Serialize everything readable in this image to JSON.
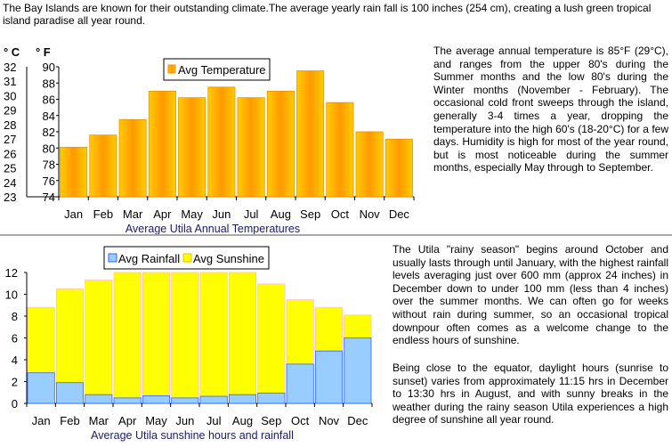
{
  "intro": "The Bay Islands are known for their outstanding climate.The average yearly rain fall is 100 inches (254 cm), creating a lush green tropical island paradise all year round.",
  "paragraphs": {
    "temperature": "The average annual temperature is 85°F (29°C), and ranges from the upper 80's during the Summer months and the low 80's during the Winter months (November - February). The occasional cold front sweeps through the island, generally 3-4 times a year, dropping the temperature into the high 60's (18-20°C) for a few days. Humidity is high for most of the year round, but is most noticeable during the summer months, especially May through to September.",
    "rainy_season": "The Utila \"rainy season\" begins around October and usually lasts through until January, with the highest rainfall levels averaging just over 600 mm (approx 24 inches) in December down to under 100 mm (less than 4 inches) over the summer months. We can often go for weeks without rain during summer, so an occasional tropical downpour often comes as a welcome change to the endless hours of sunshine.",
    "daylight": "Being close to the equator, daylight hours (sunrise to sunset) varies from approximately 11:15 hrs in December to 13:30 hrs in August, and with sunny breaks in the weather during the rainy season Utila experiences a high degree of sunshine all year round."
  },
  "chart_data": [
    {
      "type": "bar",
      "title": "Average Utila Annual Temperatures",
      "categories": [
        "Jan",
        "Feb",
        "Mar",
        "Apr",
        "May",
        "Jun",
        "Jul",
        "Aug",
        "Sep",
        "Oct",
        "Nov",
        "Dec"
      ],
      "series": [
        {
          "name": "Avg Temperature",
          "values": [
            80.1,
            81.6,
            83.5,
            87.0,
            86.2,
            87.5,
            86.2,
            87.0,
            89.5,
            85.6,
            82.0,
            81.1
          ],
          "color": "#FFA500"
        }
      ],
      "ylabel": "° F",
      "ylim": [
        74,
        90
      ],
      "yticks": [
        74,
        76,
        78,
        80,
        82,
        84,
        86,
        88,
        90
      ],
      "ylabel_secondary": "° C",
      "yticks_secondary": [
        23,
        24,
        25,
        26,
        27,
        28,
        29,
        30,
        31,
        32
      ],
      "legend": "top-center",
      "grid": false
    },
    {
      "type": "bar",
      "stacked": true,
      "title": "Average Utila sunshine hours and rainfall",
      "categories": [
        "Jan",
        "Feb",
        "Mar",
        "Apr",
        "May",
        "Jun",
        "Jul",
        "Aug",
        "Sep",
        "Oct",
        "Nov",
        "Dec"
      ],
      "series": [
        {
          "name": "Avg Rainfall",
          "values": [
            2.8,
            1.9,
            0.8,
            0.5,
            0.7,
            0.5,
            0.65,
            0.8,
            0.95,
            3.6,
            4.8,
            6.0
          ],
          "color": "#99CCFF"
        },
        {
          "name": "Avg Sunshine",
          "values": [
            6.0,
            8.6,
            10.5,
            11.5,
            11.3,
            11.5,
            11.35,
            11.2,
            10.0,
            5.9,
            4.0,
            2.1
          ],
          "color": "#FFFF00"
        }
      ],
      "ylim": [
        0,
        12
      ],
      "yticks": [
        0,
        2,
        4,
        6,
        8,
        10,
        12
      ],
      "legend": "top-center",
      "grid": false
    }
  ]
}
